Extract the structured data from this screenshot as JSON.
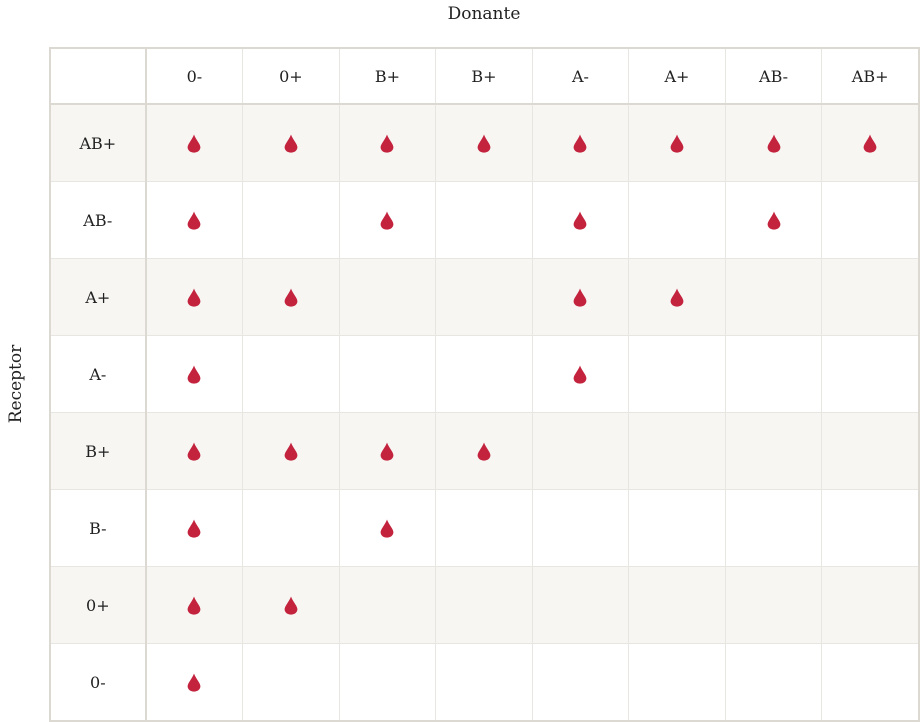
{
  "chart_data": {
    "type": "table",
    "title": "",
    "xlabel": "Donante",
    "ylabel": "Receptor",
    "columns": [
      "0-",
      "0+",
      "B+",
      "B+",
      "A-",
      "A+",
      "AB-",
      "AB+"
    ],
    "rows": [
      "AB+",
      "AB-",
      "A+",
      "A-",
      "B+",
      "B-",
      "0+",
      "0-"
    ],
    "marker": "blood-drop-icon",
    "marker_color": "#c4233e",
    "matrix": [
      [
        1,
        1,
        1,
        1,
        1,
        1,
        1,
        1
      ],
      [
        1,
        0,
        1,
        0,
        1,
        0,
        1,
        0
      ],
      [
        1,
        1,
        0,
        0,
        1,
        1,
        0,
        0
      ],
      [
        1,
        0,
        0,
        0,
        1,
        0,
        0,
        0
      ],
      [
        1,
        1,
        1,
        1,
        0,
        0,
        0,
        0
      ],
      [
        1,
        0,
        1,
        0,
        0,
        0,
        0,
        0
      ],
      [
        1,
        1,
        0,
        0,
        0,
        0,
        0,
        0
      ],
      [
        1,
        0,
        0,
        0,
        0,
        0,
        0,
        0
      ]
    ]
  },
  "labels": {
    "x_axis": "Donante",
    "y_axis": "Receptor"
  },
  "colors": {
    "drop": "#c4233e",
    "shaded_row": "#f7f6f3",
    "border": "#dcd9d2",
    "gridline": "#e8e6e1",
    "text": "#222222"
  }
}
